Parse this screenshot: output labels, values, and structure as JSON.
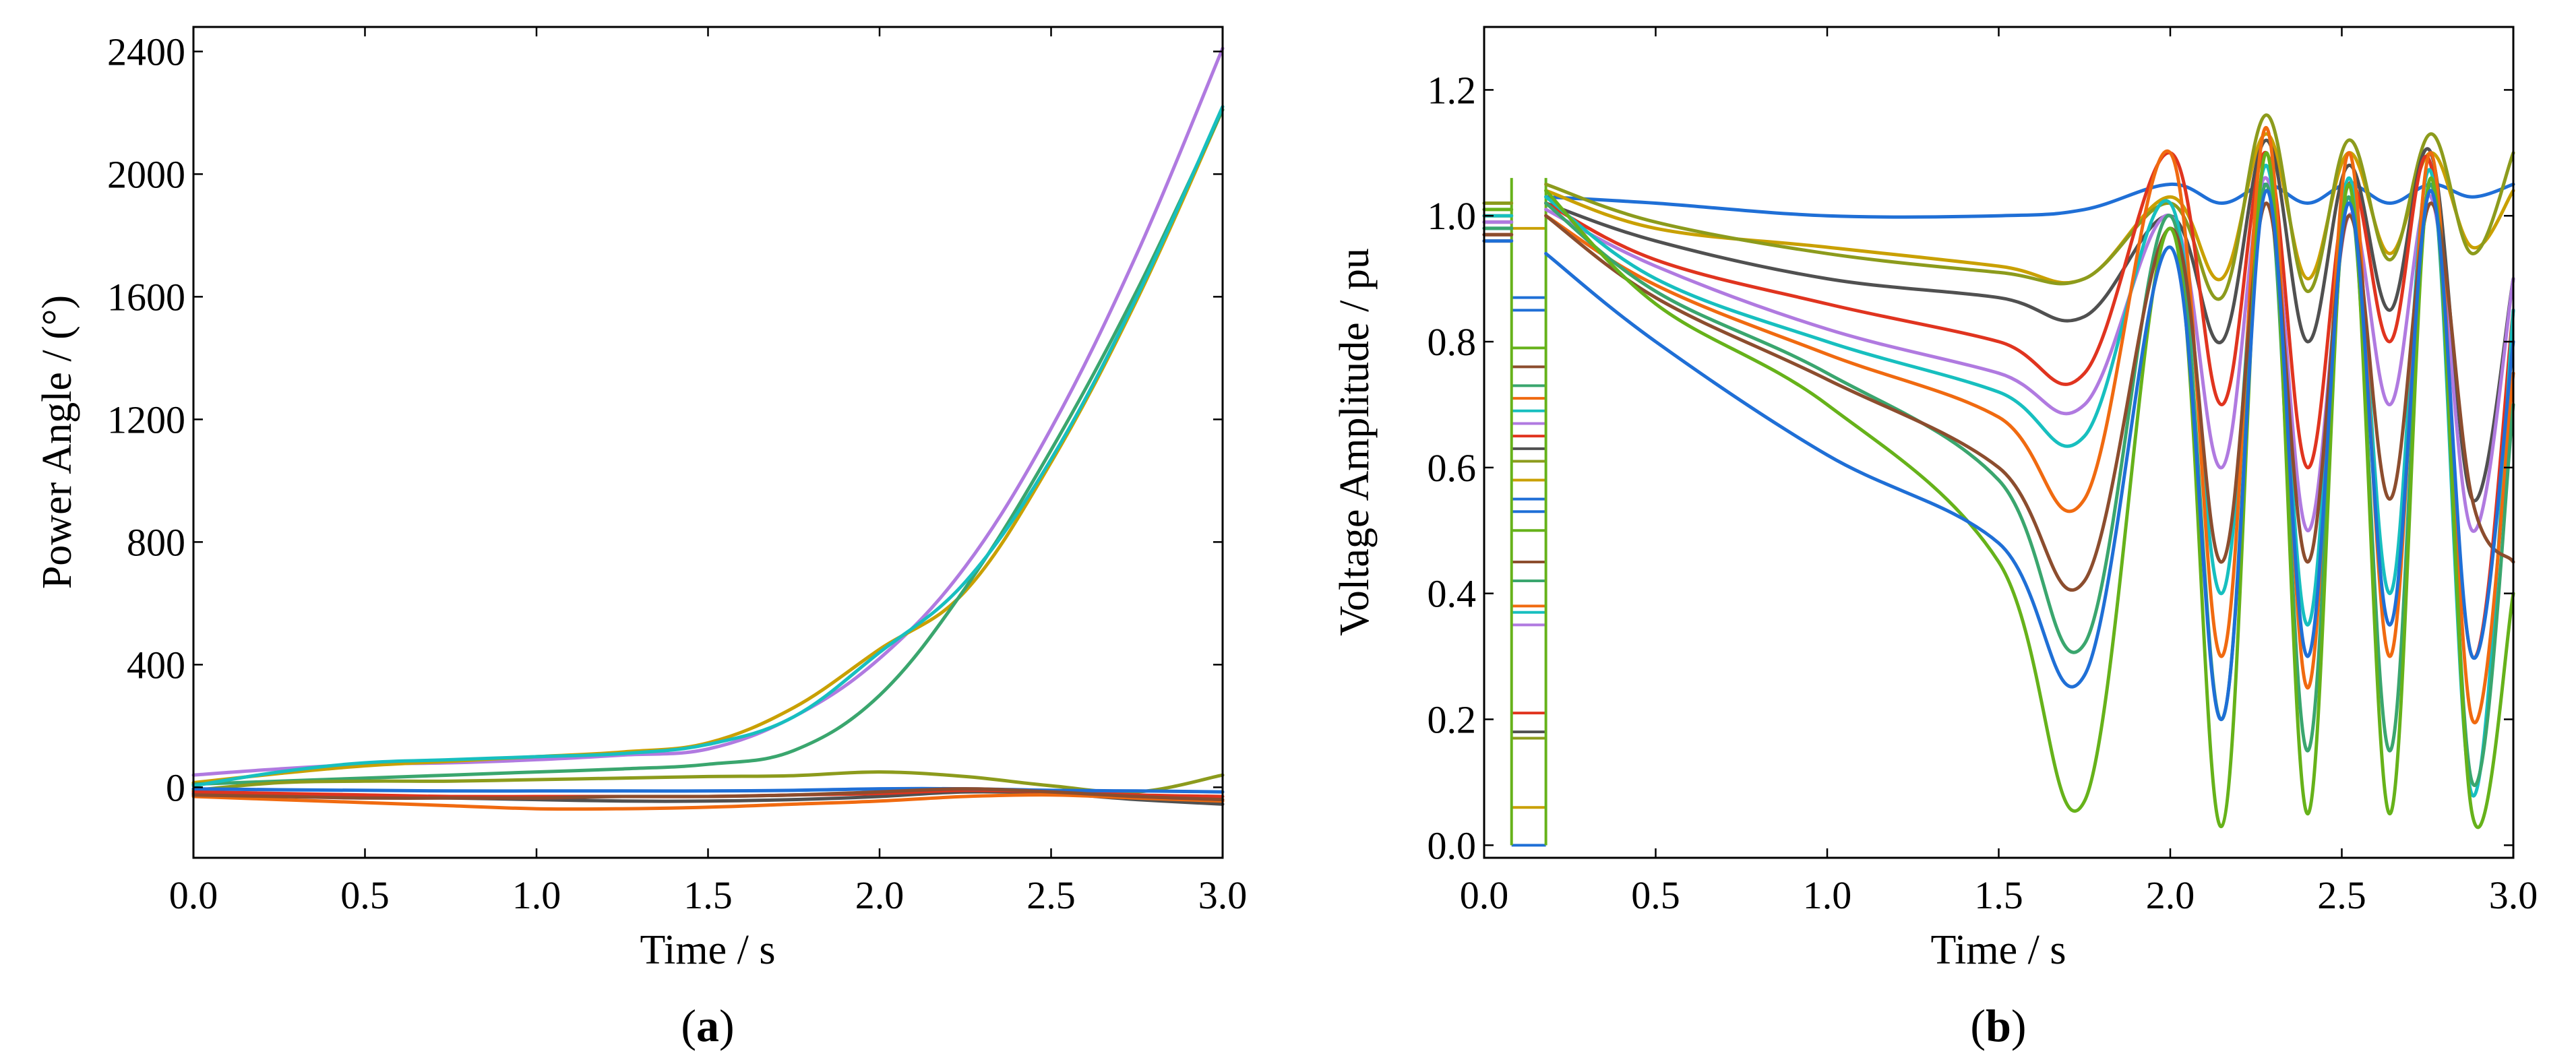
{
  "chart_data": [
    {
      "panel": "a",
      "type": "line",
      "xlabel": "Time / s",
      "ylabel": "Power Angle / (°)",
      "xlim": [
        0.0,
        3.0
      ],
      "ylim": [
        -230,
        2480
      ],
      "xticks": [
        "0.0",
        "0.5",
        "1.0",
        "1.5",
        "2.0",
        "2.5",
        "3.0"
      ],
      "yticks": [
        "0",
        "400",
        "800",
        "1200",
        "1600",
        "2000",
        "2400"
      ],
      "label_letter": "a",
      "label_open": "(",
      "label_close": ")",
      "x": [
        0,
        0.25,
        0.5,
        0.75,
        1.0,
        1.25,
        1.5,
        1.75,
        2.0,
        2.25,
        2.5,
        2.75,
        3.0
      ],
      "series": [
        {
          "name": "violet",
          "color": "#b07ae0",
          "values": [
            40,
            60,
            75,
            80,
            90,
            105,
            125,
            230,
            420,
            720,
            1170,
            1740,
            2410
          ]
        },
        {
          "name": "orange-gold",
          "color": "#c9a000",
          "values": [
            15,
            45,
            70,
            85,
            100,
            115,
            145,
            260,
            450,
            640,
            1060,
            1590,
            2210
          ]
        },
        {
          "name": "seagreen",
          "color": "#3aa66e",
          "values": [
            10,
            20,
            30,
            40,
            50,
            60,
            75,
            120,
            300,
            650,
            1100,
            1620,
            2210
          ]
        },
        {
          "name": "teal",
          "color": "#17bfbf",
          "values": [
            5,
            50,
            80,
            90,
            100,
            110,
            140,
            230,
            440,
            670,
            1070,
            1600,
            2220
          ]
        },
        {
          "name": "olive",
          "color": "#8c9b1c",
          "values": [
            -10,
            15,
            20,
            20,
            25,
            30,
            35,
            38,
            50,
            35,
            5,
            -15,
            40
          ]
        },
        {
          "name": "darkgray",
          "color": "#505050",
          "values": [
            -20,
            -25,
            -30,
            -35,
            -40,
            -45,
            -45,
            -40,
            -30,
            -15,
            -20,
            -40,
            -55
          ]
        },
        {
          "name": "red",
          "color": "#e0341f",
          "values": [
            -15,
            -20,
            -25,
            -30,
            -30,
            -30,
            -30,
            -25,
            -20,
            -10,
            -15,
            -25,
            -30
          ]
        },
        {
          "name": "orange",
          "color": "#f06a10",
          "values": [
            -30,
            -40,
            -50,
            -60,
            -70,
            -70,
            -65,
            -55,
            -45,
            -30,
            -25,
            -35,
            -45
          ]
        },
        {
          "name": "blue",
          "color": "#1f6fd6",
          "values": [
            -5,
            -8,
            -10,
            -12,
            -12,
            -12,
            -12,
            -10,
            -5,
            -5,
            -10,
            -12,
            -15
          ]
        },
        {
          "name": "brown",
          "color": "#8c4d2e",
          "values": [
            -25,
            -30,
            -35,
            -35,
            -35,
            -30,
            -30,
            -25,
            -15,
            -5,
            -15,
            -30,
            -40
          ]
        }
      ]
    },
    {
      "panel": "b",
      "type": "line",
      "xlabel": "Time / s",
      "ylabel": "Voltage Amplitude / pu",
      "xlim": [
        0.0,
        3.0
      ],
      "ylim": [
        -0.02,
        1.3
      ],
      "xticks": [
        "0.0",
        "0.5",
        "1.0",
        "1.5",
        "2.0",
        "2.5",
        "3.0"
      ],
      "yticks": [
        "0.0",
        "0.2",
        "0.4",
        "0.6",
        "0.8",
        "1.0",
        "1.2"
      ],
      "label_letter": "b",
      "label_open": "(",
      "label_close": ")",
      "fault_window": [
        0.08,
        0.18
      ],
      "fault_levels": [
        0.0,
        0.06,
        0.17,
        0.18,
        0.21,
        0.35,
        0.37,
        0.38,
        0.42,
        0.45,
        0.5,
        0.53,
        0.55,
        0.58,
        0.61,
        0.63,
        0.65,
        0.67,
        0.69,
        0.71,
        0.73,
        0.76,
        0.79,
        0.85,
        0.87,
        0.98
      ],
      "x": [
        0,
        0.08,
        0.18,
        0.5,
        1.0,
        1.5,
        1.75,
        2.0,
        2.15,
        2.28,
        2.4,
        2.52,
        2.64,
        2.76,
        2.88,
        3.0
      ],
      "series": [
        {
          "name": "blue-high",
          "color": "#1f6fd6",
          "values": [
            0.98,
            0.98,
            1.03,
            1.02,
            1.0,
            1.0,
            1.01,
            1.05,
            1.02,
            1.05,
            1.02,
            1.05,
            1.02,
            1.05,
            1.03,
            1.05
          ]
        },
        {
          "name": "gold",
          "color": "#c9a000",
          "values": [
            1.0,
            1.0,
            1.04,
            0.98,
            0.95,
            0.92,
            0.9,
            1.03,
            0.9,
            1.13,
            0.9,
            1.1,
            0.94,
            1.1,
            0.95,
            1.04
          ]
        },
        {
          "name": "olive",
          "color": "#8c9b1c",
          "values": [
            1.02,
            1.02,
            1.05,
            0.99,
            0.94,
            0.91,
            0.9,
            1.02,
            0.87,
            1.16,
            0.88,
            1.12,
            0.93,
            1.13,
            0.94,
            1.1
          ]
        },
        {
          "name": "darkgray",
          "color": "#505050",
          "values": [
            0.99,
            0.99,
            1.02,
            0.96,
            0.9,
            0.87,
            0.84,
            1.0,
            0.8,
            1.12,
            0.8,
            1.08,
            0.85,
            1.1,
            0.55,
            0.9
          ]
        },
        {
          "name": "red",
          "color": "#e0341f",
          "values": [
            0.97,
            0.97,
            1.02,
            0.93,
            0.86,
            0.8,
            0.75,
            1.1,
            0.7,
            1.1,
            0.6,
            1.05,
            0.8,
            1.08,
            0.3,
            0.85
          ]
        },
        {
          "name": "violet",
          "color": "#b07ae0",
          "values": [
            0.99,
            0.99,
            1.01,
            0.92,
            0.82,
            0.75,
            0.7,
            1.0,
            0.6,
            1.06,
            0.5,
            1.0,
            0.7,
            1.03,
            0.5,
            0.9
          ]
        },
        {
          "name": "teal",
          "color": "#17bfbf",
          "values": [
            1.0,
            1.0,
            1.03,
            0.9,
            0.8,
            0.72,
            0.65,
            1.02,
            0.4,
            1.08,
            0.35,
            1.06,
            0.4,
            1.07,
            0.08,
            0.85
          ]
        },
        {
          "name": "orange",
          "color": "#f06a10",
          "values": [
            0.96,
            0.96,
            1.0,
            0.89,
            0.78,
            0.68,
            0.55,
            1.1,
            0.3,
            1.14,
            0.25,
            1.1,
            0.3,
            1.1,
            0.2,
            0.75
          ]
        },
        {
          "name": "seagreen",
          "color": "#3aa66e",
          "values": [
            0.98,
            0.98,
            1.02,
            0.88,
            0.75,
            0.58,
            0.32,
            1.0,
            0.2,
            1.05,
            0.15,
            1.03,
            0.15,
            1.05,
            0.1,
            0.7
          ]
        },
        {
          "name": "brown",
          "color": "#8c4d2e",
          "values": [
            0.97,
            0.97,
            1.0,
            0.87,
            0.74,
            0.6,
            0.42,
            0.98,
            0.45,
            1.02,
            0.45,
            1.0,
            0.55,
            1.02,
            0.55,
            0.45
          ]
        },
        {
          "name": "lime",
          "color": "#66b21a",
          "values": [
            1.01,
            1.01,
            1.04,
            0.86,
            0.7,
            0.45,
            0.07,
            0.98,
            0.03,
            1.1,
            0.05,
            1.05,
            0.05,
            1.06,
            0.05,
            0.4
          ]
        },
        {
          "name": "blue-low",
          "color": "#1f6fd6",
          "values": [
            0.96,
            0.96,
            0.94,
            0.8,
            0.62,
            0.48,
            0.27,
            0.95,
            0.2,
            1.04,
            0.3,
            1.02,
            0.35,
            1.04,
            0.3,
            0.8
          ]
        }
      ]
    }
  ]
}
